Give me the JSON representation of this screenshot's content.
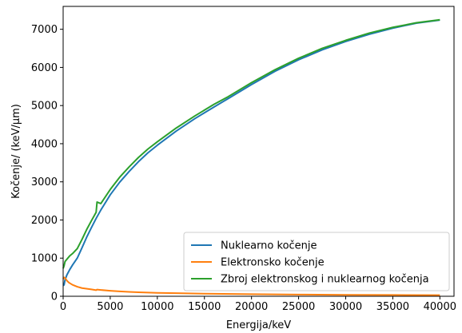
{
  "chart_data": {
    "type": "line",
    "xlabel": "Energija/keV",
    "ylabel": "Kočenje/ (keV/µm)",
    "xlim": [
      0,
      41500
    ],
    "ylim": [
      0,
      7600
    ],
    "xticks": [
      0,
      5000,
      10000,
      15000,
      20000,
      25000,
      30000,
      35000,
      40000
    ],
    "yticks": [
      0,
      1000,
      2000,
      3000,
      4000,
      5000,
      6000,
      7000
    ],
    "grid": false,
    "legend_position": "lower-right",
    "series": [
      {
        "name": "Nuklearno kočenje",
        "color": "#1f77b4",
        "points": [
          [
            0,
            280
          ],
          [
            100,
            300
          ],
          [
            200,
            430
          ],
          [
            400,
            560
          ],
          [
            700,
            700
          ],
          [
            1000,
            820
          ],
          [
            1500,
            1000
          ],
          [
            2000,
            1270
          ],
          [
            2500,
            1550
          ],
          [
            3000,
            1800
          ],
          [
            3500,
            2040
          ],
          [
            4000,
            2260
          ],
          [
            5000,
            2660
          ],
          [
            6000,
            2990
          ],
          [
            7000,
            3270
          ],
          [
            8000,
            3530
          ],
          [
            9000,
            3760
          ],
          [
            10000,
            3960
          ],
          [
            12000,
            4330
          ],
          [
            14000,
            4660
          ],
          [
            16000,
            4960
          ],
          [
            17500,
            5180
          ],
          [
            20000,
            5550
          ],
          [
            22500,
            5900
          ],
          [
            25000,
            6200
          ],
          [
            27500,
            6460
          ],
          [
            30000,
            6680
          ],
          [
            32500,
            6870
          ],
          [
            35000,
            7030
          ],
          [
            37500,
            7160
          ],
          [
            40000,
            7240
          ]
        ]
      },
      {
        "name": "Elektronsko kočenje",
        "color": "#ff7f0e",
        "points": [
          [
            0,
            450
          ],
          [
            100,
            495
          ],
          [
            200,
            480
          ],
          [
            400,
            410
          ],
          [
            600,
            360
          ],
          [
            1000,
            300
          ],
          [
            1500,
            250
          ],
          [
            2000,
            215
          ],
          [
            3000,
            180
          ],
          [
            3500,
            160
          ],
          [
            3600,
            175
          ],
          [
            4000,
            165
          ],
          [
            5000,
            145
          ],
          [
            6000,
            128
          ],
          [
            7000,
            115
          ],
          [
            8000,
            105
          ],
          [
            10000,
            90
          ],
          [
            12000,
            80
          ],
          [
            15000,
            68
          ],
          [
            20000,
            55
          ],
          [
            25000,
            45
          ],
          [
            30000,
            38
          ],
          [
            35000,
            33
          ],
          [
            40000,
            29
          ]
        ]
      },
      {
        "name": "Zbroj elektronskog i nuklearnog kočenja",
        "color": "#2ca02c",
        "points": [
          [
            0,
            730
          ],
          [
            100,
            800
          ],
          [
            200,
            910
          ],
          [
            400,
            970
          ],
          [
            700,
            1060
          ],
          [
            1000,
            1120
          ],
          [
            1500,
            1250
          ],
          [
            2000,
            1490
          ],
          [
            2500,
            1750
          ],
          [
            3000,
            1980
          ],
          [
            3500,
            2200
          ],
          [
            3600,
            2470
          ],
          [
            4000,
            2430
          ],
          [
            5000,
            2800
          ],
          [
            6000,
            3120
          ],
          [
            7000,
            3390
          ],
          [
            8000,
            3640
          ],
          [
            9000,
            3860
          ],
          [
            10000,
            4050
          ],
          [
            12000,
            4410
          ],
          [
            14000,
            4730
          ],
          [
            16000,
            5030
          ],
          [
            17500,
            5230
          ],
          [
            20000,
            5600
          ],
          [
            22500,
            5940
          ],
          [
            25000,
            6240
          ],
          [
            27500,
            6500
          ],
          [
            30000,
            6710
          ],
          [
            32500,
            6900
          ],
          [
            35000,
            7050
          ],
          [
            37500,
            7170
          ],
          [
            40000,
            7250
          ]
        ]
      }
    ]
  }
}
